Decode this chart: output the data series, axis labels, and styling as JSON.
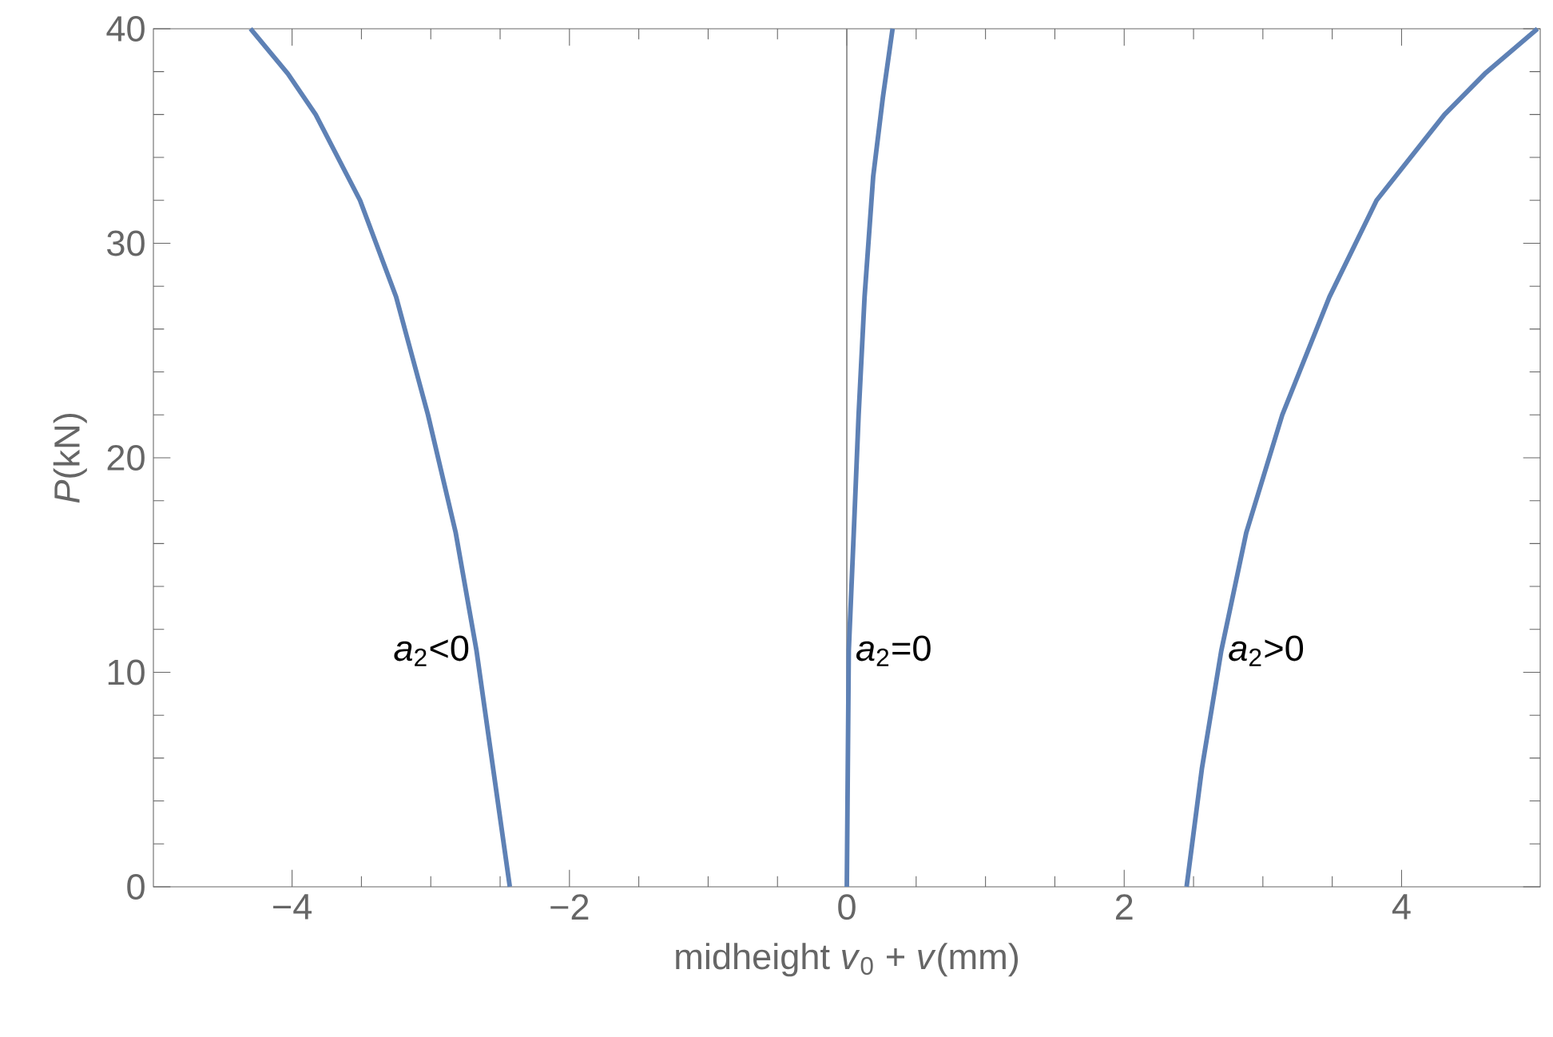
{
  "chart_data": {
    "type": "line",
    "xlabel": "midheight *v*$_{0}$ + *v*(mm)",
    "ylabel": "*P*(kN)",
    "xlim": [
      -5,
      5
    ],
    "ylim": [
      0,
      40
    ],
    "xticks": [
      {
        "value": -4,
        "label": "−4"
      },
      {
        "value": -2,
        "label": "−2"
      },
      0,
      2,
      4
    ],
    "yticks": [
      0,
      10,
      20,
      30,
      40
    ],
    "grid": false,
    "marker": "none",
    "line_style": "solid",
    "ref_lines": [
      {
        "axis": "x",
        "value": 0,
        "color": "#808080"
      }
    ],
    "series": [
      {
        "color": "#5e81b5",
        "x": [
          -2.43,
          -2.55,
          -2.67,
          -2.82,
          -3.02,
          -3.25,
          -3.51,
          -3.83,
          -4.03,
          -4.3
        ],
        "values": [
          0,
          5.5,
          11,
          16.5,
          22,
          27.5,
          32,
          36,
          37.9,
          40
        ]
      },
      {
        "color": "#5e81b5",
        "x": [
          0,
          0.014,
          0.05,
          0.085,
          0.128,
          0.19,
          0.26,
          0.33
        ],
        "values": [
          0,
          11,
          16.5,
          22,
          27.5,
          33.1,
          36.8,
          40
        ]
      },
      {
        "color": "#5e81b5",
        "x": [
          2.45,
          2.56,
          2.7,
          2.88,
          3.14,
          3.48,
          3.82,
          4.31,
          4.6,
          4.98
        ],
        "values": [
          0,
          5.5,
          11,
          16.5,
          22,
          27.5,
          32,
          36,
          37.9,
          40
        ]
      }
    ],
    "annotations": [
      "*a*$_{2}$<0",
      "*a*$_{2}$=0",
      "*a*$_{2}$>0"
    ]
  }
}
